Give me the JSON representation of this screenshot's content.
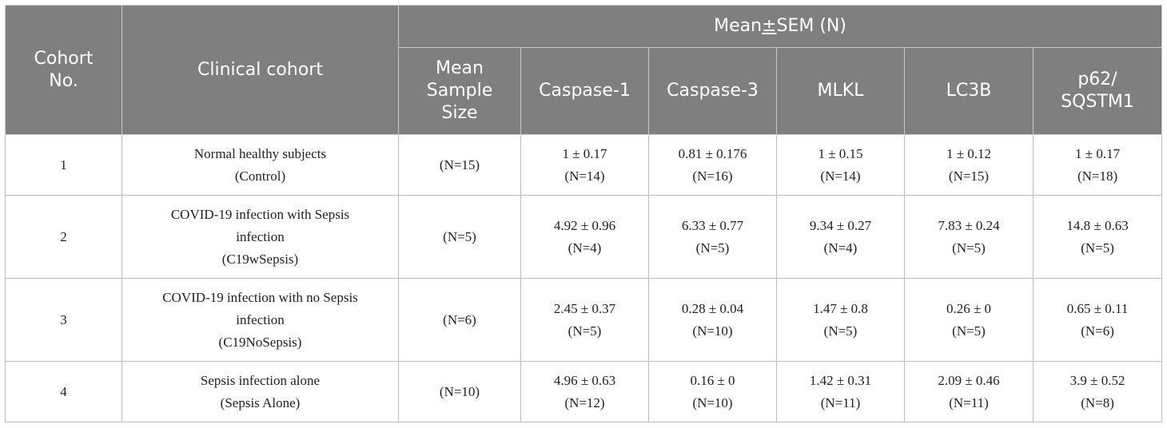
{
  "table": {
    "header": {
      "cohort_no": [
        "Cohort",
        "No."
      ],
      "clinical_cohort": "Clinical cohort",
      "group_title_pre": "Mean",
      "group_title_pm": "±",
      "group_title_post": "SEM (N)",
      "mean_sample_size": [
        "Mean",
        "Sample",
        "Size"
      ],
      "caspase1": "Caspase-1",
      "caspase3": "Caspase-3",
      "mlkl": "MLKL",
      "lc3b": "LC3B",
      "p62": [
        "p62/",
        "SQSTM1"
      ]
    },
    "rows": [
      {
        "no": "1",
        "cohort": [
          "Normal healthy subjects",
          "(Control)"
        ],
        "sample": "(N=15)",
        "caspase1": [
          "1 ± 0.17",
          "(N=14)"
        ],
        "caspase3": [
          "0.81 ± 0.176",
          "(N=16)"
        ],
        "mlkl": [
          "1 ± 0.15",
          "(N=14)"
        ],
        "lc3b": [
          "1 ± 0.12",
          "(N=15)"
        ],
        "p62": [
          "1 ± 0.17",
          "(N=18)"
        ]
      },
      {
        "no": "2",
        "cohort": [
          "COVID-19 infection with Sepsis",
          "infection",
          "(C19wSepsis)"
        ],
        "sample": "(N=5)",
        "caspase1": [
          "4.92 ± 0.96",
          "(N=4)"
        ],
        "caspase3": [
          "6.33 ± 0.77",
          "(N=5)"
        ],
        "mlkl": [
          "9.34 ± 0.27",
          "(N=4)"
        ],
        "lc3b": [
          "7.83 ± 0.24",
          "(N=5)"
        ],
        "p62": [
          "14.8 ± 0.63",
          "(N=5)"
        ]
      },
      {
        "no": "3",
        "cohort": [
          "COVID-19 infection with no Sepsis",
          "infection",
          "(C19NoSepsis)"
        ],
        "sample": "(N=6)",
        "caspase1": [
          "2.45 ± 0.37",
          "(N=5)"
        ],
        "caspase3": [
          "0.28 ± 0.04",
          "(N=10)"
        ],
        "mlkl": [
          "1.47 ± 0.8",
          "(N=5)"
        ],
        "lc3b": [
          "0.26 ± 0",
          "(N=5)"
        ],
        "p62": [
          "0.65 ± 0.11",
          "(N=6)"
        ]
      },
      {
        "no": "4",
        "cohort": [
          "Sepsis infection alone",
          "(Sepsis Alone)"
        ],
        "sample": "(N=10)",
        "caspase1": [
          "4.96 ± 0.63",
          "(N=12)"
        ],
        "caspase3": [
          "0.16 ± 0",
          "(N=10)"
        ],
        "mlkl": [
          "1.42 ± 0.31",
          "(N=11)"
        ],
        "lc3b": [
          "2.09 ± 0.46",
          "(N=11)"
        ],
        "p62": [
          "3.9 ± 0.52",
          "(N=8)"
        ]
      }
    ]
  }
}
